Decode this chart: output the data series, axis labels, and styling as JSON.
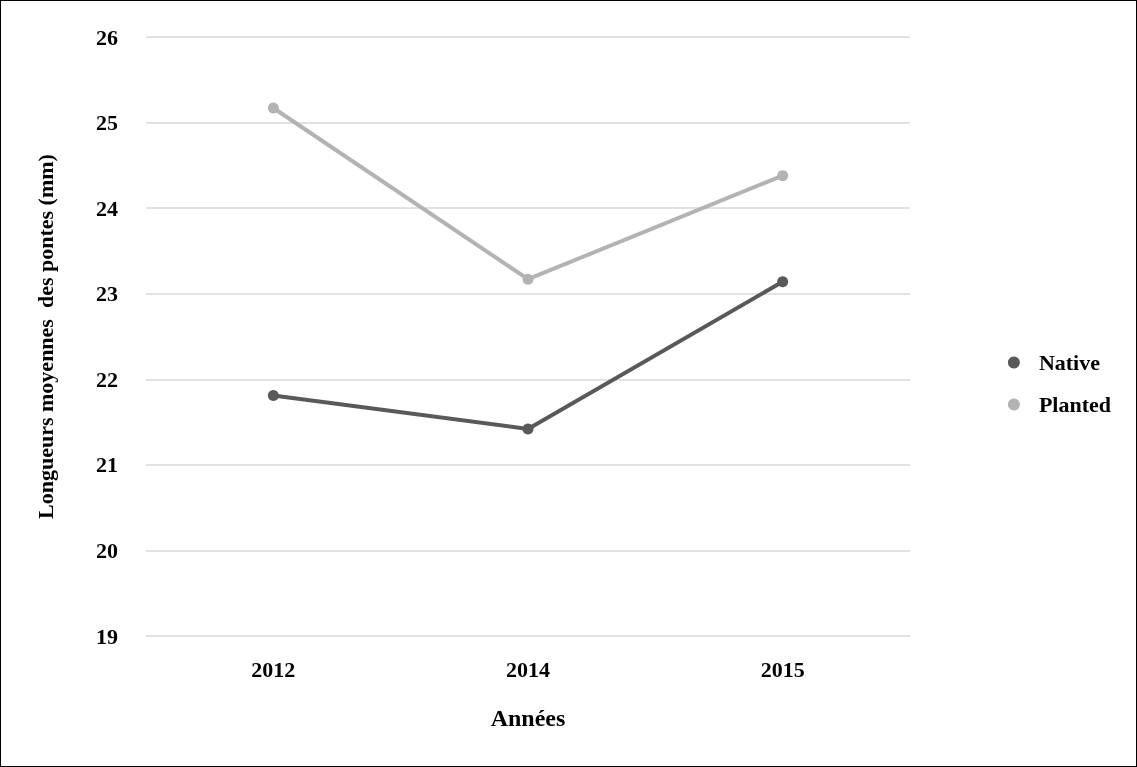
{
  "chart_data": {
    "type": "line",
    "xlabel": "Années",
    "ylabel": "Longueurs moyennes  des pontes (mm)",
    "categories": [
      "2012",
      "2014",
      "2015"
    ],
    "series": [
      {
        "name": "Native",
        "color": "#595959",
        "values": [
          21.81,
          21.42,
          23.14
        ]
      },
      {
        "name": "Planted",
        "color": "#b3b3b3",
        "values": [
          25.17,
          23.17,
          24.38
        ]
      }
    ],
    "ylim": [
      19,
      26
    ],
    "yticks": [
      19,
      20,
      21,
      22,
      23,
      24,
      25,
      26
    ],
    "grid": "y",
    "legend": "right",
    "marker": "circle",
    "line_style": "solid"
  }
}
